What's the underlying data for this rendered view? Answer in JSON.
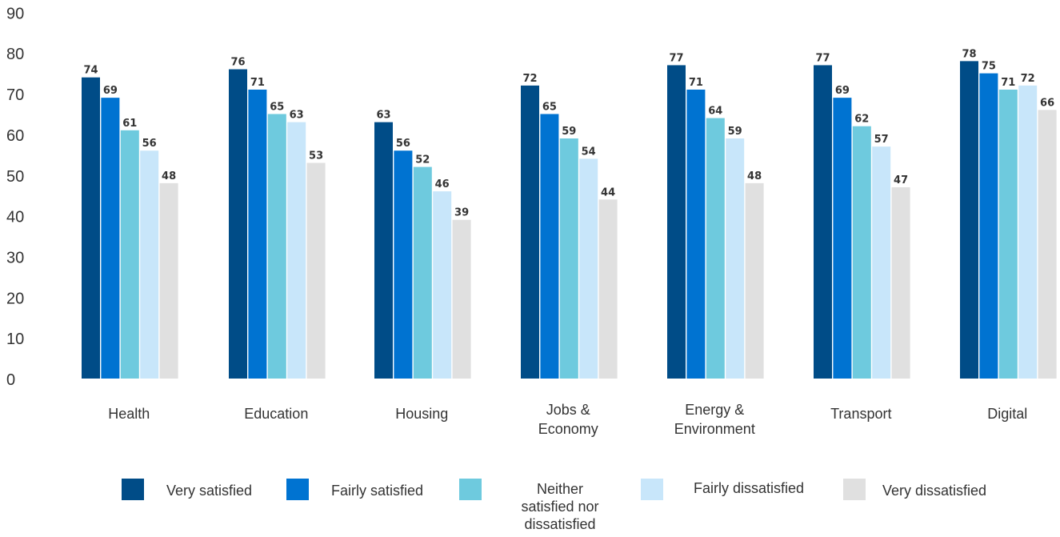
{
  "chart_data": {
    "type": "bar",
    "categories": [
      "Health",
      "Education",
      "Housing",
      "Jobs & Economy",
      "Energy & Environment",
      "Transport",
      "Digital"
    ],
    "series": [
      {
        "name": "Very satisfied",
        "color": "#004C87",
        "values": [
          74,
          76,
          63,
          72,
          77,
          77,
          78
        ]
      },
      {
        "name": "Fairly satisfied",
        "color": "#0073D1",
        "values": [
          69,
          71,
          56,
          65,
          71,
          69,
          75
        ]
      },
      {
        "name": "Neither satisfied nor dissatisfied",
        "color": "#6ECADE",
        "values": [
          61,
          65,
          52,
          59,
          64,
          62,
          71
        ]
      },
      {
        "name": "Fairly dissatisfied",
        "color": "#C8E6FA",
        "values": [
          56,
          63,
          46,
          54,
          59,
          57,
          72
        ]
      },
      {
        "name": "Very dissatisfied",
        "color": "#E0E0E0",
        "values": [
          48,
          53,
          39,
          44,
          48,
          47,
          66
        ]
      }
    ],
    "y_ticks": [
      0,
      10,
      20,
      30,
      40,
      50,
      60,
      70,
      80,
      90
    ],
    "ylim": [
      0,
      90
    ],
    "grid": false,
    "legend_position": "bottom",
    "data_labels": true
  }
}
